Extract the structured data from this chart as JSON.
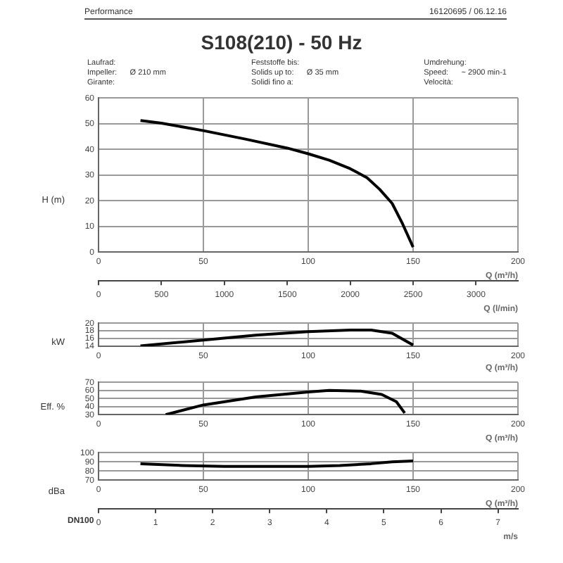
{
  "chart_data": [
    {
      "type": "other",
      "title": "S108(210) - 50 Hz",
      "annotations": [
        "Performance",
        "16120695 / 06.12.16",
        "Laufrad:\nImpeller:      Ø 210 mm\nGirante:",
        "Feststoffe bis:\nSolids up to:      Ø 35 mm\nSolidi fino a:",
        "Umdrehung:\nSpeed:      ~ 2900 min-1\nVelocità:"
      ]
    },
    {
      "type": "line",
      "ylabel": "H (m)",
      "xlabel": "Q (m³/h)",
      "x2label": "Q (l/min)",
      "grid": true,
      "legend": false,
      "marker": "none",
      "line_style": "solid",
      "x": [
        20,
        30,
        50,
        70,
        90,
        100,
        110,
        120,
        128,
        134,
        140,
        145,
        150
      ],
      "series": [
        {
          "color": "#000000",
          "values": [
            51.2,
            50.2,
            47.3,
            44,
            40.5,
            38.3,
            35.8,
            32.5,
            29,
            24.5,
            19,
            11,
            2
          ]
        }
      ],
      "xlim": [
        0,
        200
      ],
      "xticks": [
        0,
        50,
        100,
        150,
        200
      ],
      "ylim": [
        0,
        60
      ],
      "yticks": [
        0,
        10,
        20,
        30,
        40,
        50,
        60
      ],
      "x2lim": [
        0,
        3333
      ],
      "x2ticks": [
        0,
        500,
        1000,
        1500,
        2000,
        2500,
        3000
      ]
    },
    {
      "type": "line",
      "ylabel": "kW",
      "xlabel": "Q (m³/h)",
      "grid": true,
      "legend": false,
      "marker": "none",
      "line_style": "solid",
      "x": [
        20,
        50,
        75,
        100,
        120,
        130,
        140,
        150
      ],
      "series": [
        {
          "color": "#000000",
          "values": [
            14.1,
            15.6,
            16.9,
            17.8,
            18.2,
            18.2,
            17.4,
            14.3
          ]
        }
      ],
      "xlim": [
        0,
        200
      ],
      "xticks": [
        0,
        50,
        100,
        150,
        200
      ],
      "ylim": [
        14,
        20
      ],
      "yticks": [
        14,
        16,
        18,
        20
      ]
    },
    {
      "type": "line",
      "ylabel": "Eff. %",
      "xlabel": "Q (m³/h)",
      "grid": true,
      "legend": false,
      "marker": "none",
      "line_style": "solid",
      "x": [
        32,
        50,
        75,
        100,
        110,
        125,
        135,
        142,
        146
      ],
      "series": [
        {
          "color": "#000000",
          "values": [
            30,
            42,
            52,
            58,
            60,
            59,
            55,
            46,
            32
          ]
        }
      ],
      "xlim": [
        0,
        200
      ],
      "xticks": [
        0,
        50,
        100,
        150,
        200
      ],
      "ylim": [
        30,
        70
      ],
      "yticks": [
        30,
        40,
        50,
        60,
        70
      ]
    },
    {
      "type": "line",
      "ylabel": "dBa",
      "xlabel": "Q (m³/h)",
      "x2label": "m/s",
      "annotations": [
        "DN100"
      ],
      "grid": true,
      "legend": false,
      "marker": "none",
      "line_style": "solid",
      "x": [
        20,
        40,
        60,
        100,
        115,
        130,
        140,
        150
      ],
      "series": [
        {
          "color": "#000000",
          "values": [
            88,
            86,
            85,
            85,
            86,
            88,
            90,
            91
          ]
        }
      ],
      "xlim": [
        0,
        200
      ],
      "xticks": [
        0,
        50,
        100,
        150,
        200
      ],
      "ylim": [
        70,
        100
      ],
      "yticks": [
        70,
        80,
        90,
        100
      ],
      "x2lim": [
        0,
        7.35
      ],
      "x2ticks": [
        0,
        1,
        2,
        3,
        4,
        5,
        6,
        7
      ]
    }
  ]
}
